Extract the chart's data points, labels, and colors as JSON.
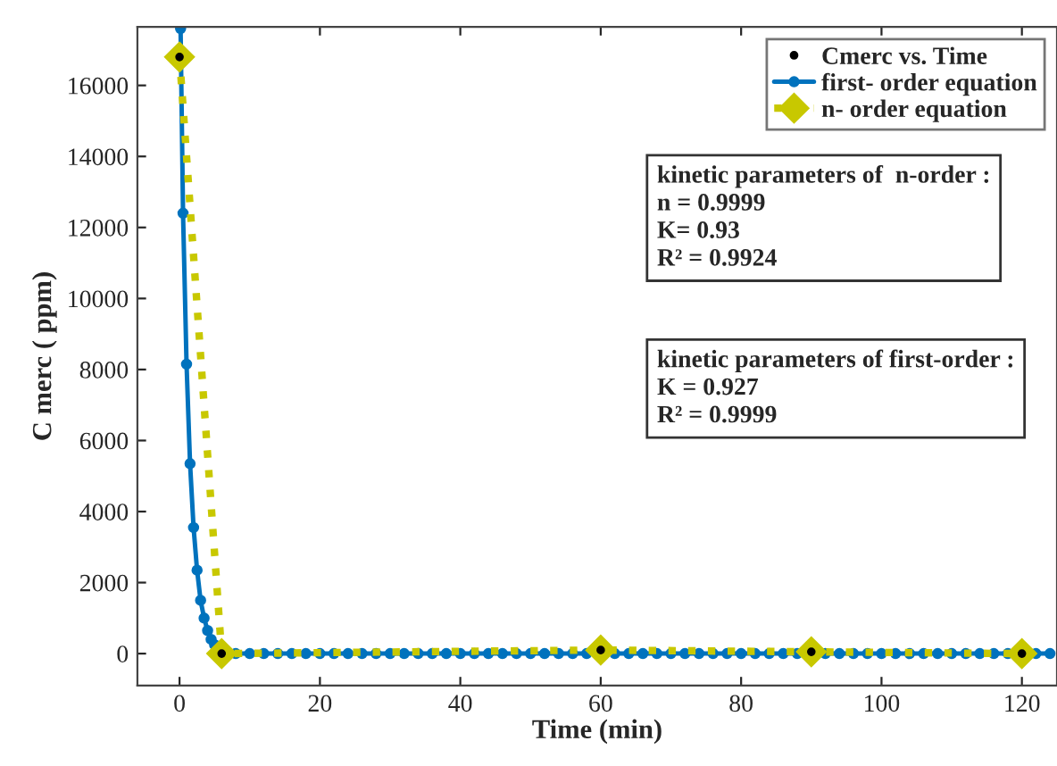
{
  "chart_data": {
    "type": "line",
    "xlabel": "Time (min)",
    "ylabel": "C merc ( ppm)",
    "xlim": [
      -6,
      125
    ],
    "ylim": [
      -900,
      17650
    ],
    "xticks": [
      0,
      20,
      40,
      60,
      80,
      100,
      120
    ],
    "yticks": [
      0,
      2000,
      4000,
      6000,
      8000,
      10000,
      12000,
      14000,
      16000
    ],
    "grid": false,
    "legend": "top right",
    "series": [
      {
        "name": "first- order equation",
        "color": "#0072bd",
        "marker": "circle",
        "line_style": "solid",
        "x": [
          0.15,
          0.5,
          1,
          1.5,
          2,
          2.5,
          3,
          3.5,
          4,
          4.5,
          5,
          5.5,
          6,
          8,
          10,
          12,
          14,
          16,
          18,
          20,
          22,
          24,
          26,
          28,
          30,
          32,
          34,
          36,
          38,
          40,
          42,
          44,
          46,
          48,
          50,
          52,
          54,
          56,
          58,
          60,
          62,
          64,
          66,
          68,
          70,
          72,
          74,
          76,
          78,
          80,
          82,
          84,
          86,
          88,
          90,
          92,
          94,
          96,
          98,
          100,
          102,
          104,
          106,
          108,
          110,
          112,
          114,
          116,
          118,
          120,
          122,
          124
        ],
        "values": [
          17600,
          12400,
          8150,
          5350,
          3550,
          2350,
          1500,
          1000,
          650,
          400,
          250,
          150,
          50,
          0,
          0,
          0,
          0,
          0,
          0,
          0,
          0,
          0,
          0,
          0,
          0,
          0,
          0,
          0,
          0,
          0,
          0,
          0,
          0,
          0,
          0,
          0,
          0,
          0,
          0,
          0,
          0,
          0,
          0,
          0,
          0,
          0,
          0,
          0,
          0,
          0,
          0,
          0,
          0,
          0,
          0,
          0,
          0,
          0,
          0,
          0,
          0,
          0,
          0,
          0,
          0,
          0,
          0,
          0,
          0,
          0,
          0,
          0
        ]
      },
      {
        "name": "n- order equation",
        "color": "#c8c800",
        "marker": "diamond",
        "line_style": "dotted",
        "x": [
          0,
          6,
          60,
          90,
          120
        ],
        "values": [
          16800,
          0,
          100,
          50,
          0
        ]
      },
      {
        "name": "Cmerc vs. Time",
        "type": "scatter",
        "color": "#000000",
        "marker": "circle",
        "x": [
          0,
          6,
          60,
          90,
          120
        ],
        "values": [
          16800,
          0,
          100,
          50,
          0
        ]
      }
    ],
    "annotations": [
      "kinetic parameters of  n-order :\nn = 0.9999\nK= 0.93\nR² = 0.9924",
      "kinetic parameters of first-order :\nK = 0.927\nR² = 0.9999"
    ]
  }
}
